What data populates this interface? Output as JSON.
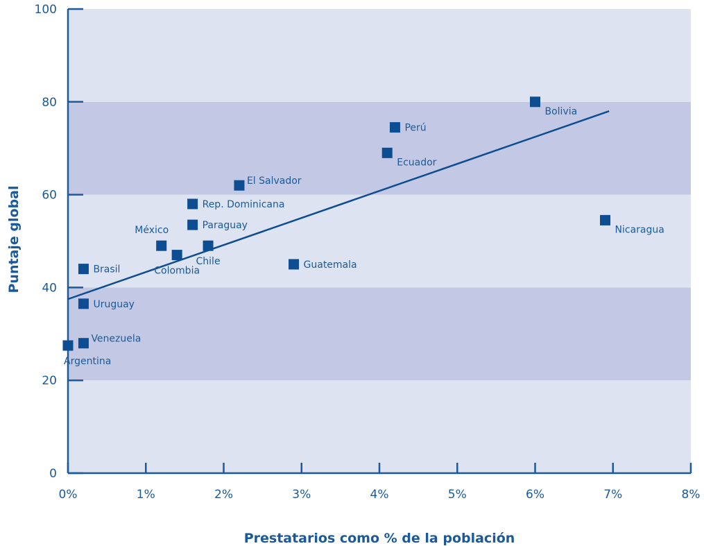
{
  "chart_data": {
    "type": "scatter",
    "title": "",
    "xlabel": "Prestatarios como % de la población",
    "ylabel": "Puntaje global",
    "xlim": [
      0,
      8
    ],
    "ylim": [
      0,
      100
    ],
    "x_ticks": [
      0,
      1,
      2,
      3,
      4,
      5,
      6,
      7,
      8
    ],
    "x_tick_labels": [
      "0%",
      "1%",
      "2%",
      "3%",
      "4%",
      "5%",
      "6%",
      "7%",
      "8%"
    ],
    "y_ticks": [
      0,
      20,
      40,
      60,
      80,
      100
    ],
    "y_tick_labels": [
      "0",
      "20",
      "40",
      "60",
      "80",
      "100"
    ],
    "bands": [
      {
        "from": 0,
        "to": 20,
        "color": "#dde3f1"
      },
      {
        "from": 20,
        "to": 40,
        "color": "#c3c9e4"
      },
      {
        "from": 40,
        "to": 60,
        "color": "#dde3f1"
      },
      {
        "from": 60,
        "to": 80,
        "color": "#c3c9e4"
      },
      {
        "from": 80,
        "to": 100,
        "color": "#dde3f1"
      }
    ],
    "points": [
      {
        "label": "Argentina",
        "x": 0.0,
        "y": 27.5,
        "lpos": "below-right"
      },
      {
        "label": "Venezuela",
        "x": 0.2,
        "y": 28.0,
        "lpos": "right-up"
      },
      {
        "label": "Uruguay",
        "x": 0.2,
        "y": 36.5,
        "lpos": "right"
      },
      {
        "label": "Brasil",
        "x": 0.2,
        "y": 44.0,
        "lpos": "right"
      },
      {
        "label": "México",
        "x": 1.2,
        "y": 49.0,
        "lpos": "above-left"
      },
      {
        "label": "Colombia",
        "x": 1.4,
        "y": 47.0,
        "lpos": "below"
      },
      {
        "label": "Chile",
        "x": 1.8,
        "y": 49.0,
        "lpos": "below"
      },
      {
        "label": "Paraguay",
        "x": 1.6,
        "y": 53.5,
        "lpos": "right"
      },
      {
        "label": "Rep. Dominicana",
        "x": 1.6,
        "y": 58.0,
        "lpos": "right"
      },
      {
        "label": "El Salvador",
        "x": 2.2,
        "y": 62.0,
        "lpos": "right-up"
      },
      {
        "label": "Guatemala",
        "x": 2.9,
        "y": 45.0,
        "lpos": "right"
      },
      {
        "label": "Ecuador",
        "x": 4.1,
        "y": 69.0,
        "lpos": "right-down"
      },
      {
        "label": "Perú",
        "x": 4.2,
        "y": 74.5,
        "lpos": "right"
      },
      {
        "label": "Bolivia",
        "x": 6.0,
        "y": 80.0,
        "lpos": "right-down"
      },
      {
        "label": "Nicaragua",
        "x": 6.9,
        "y": 54.5,
        "lpos": "right-down"
      }
    ],
    "trendline": {
      "x": [
        0,
        6.95
      ],
      "y": [
        37.5,
        78.0
      ]
    },
    "grid": false,
    "legend": "none",
    "colors": {
      "marker": "#0d4d92",
      "axis": "#1a5a9a",
      "trend": "#0d4d92"
    }
  }
}
